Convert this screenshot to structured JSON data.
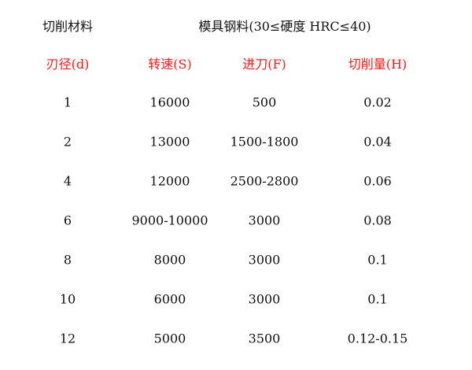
{
  "title": {
    "label": "切削材料",
    "material": "模具钢料(30≤硬度 HRC≤40)"
  },
  "columns": [
    "刃径(d)",
    "转速(S)",
    "进刀(F)",
    "切削量(H)"
  ],
  "header_color": "#ff1a1a",
  "rows": [
    [
      "1",
      "16000",
      "500",
      "0.02"
    ],
    [
      "2",
      "13000",
      "1500-1800",
      "0.04"
    ],
    [
      "4",
      "12000",
      "2500-2800",
      "0.06"
    ],
    [
      "6",
      "9000-10000",
      "3000",
      "0.08"
    ],
    [
      "8",
      "8000",
      "3000",
      "0.1"
    ],
    [
      "10",
      "6000",
      "3000",
      "0.1"
    ],
    [
      "12",
      "5000",
      "3500",
      "0.12-0.15"
    ]
  ]
}
